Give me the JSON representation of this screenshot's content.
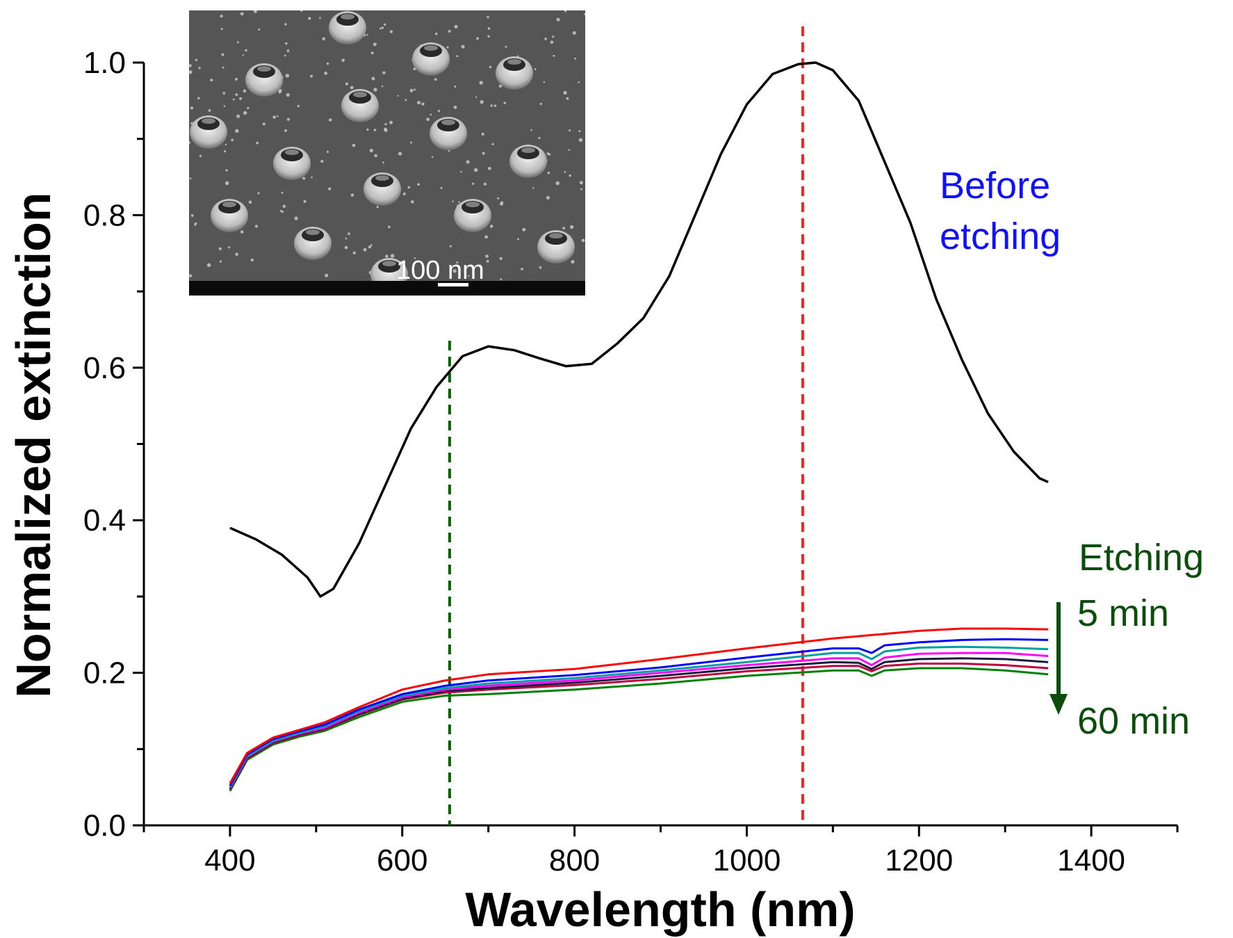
{
  "chart_data": {
    "type": "line",
    "title": "",
    "xlabel": "Wavelength (nm)",
    "ylabel": "Normalized extinction",
    "xlim": [
      300,
      1500
    ],
    "ylim": [
      0,
      1.0
    ],
    "xticks": [
      400,
      600,
      800,
      1000,
      1200,
      1400
    ],
    "xtick_labels": [
      "400",
      "600",
      "800",
      "1000",
      "1200",
      "1400"
    ],
    "yticks": [
      0,
      0.2,
      0.4,
      0.6,
      0.8,
      1.0
    ],
    "ytick_labels": [
      "0.0",
      "0.2",
      "0.4",
      "0.6",
      "0.8",
      "1.0"
    ],
    "grid": false,
    "series": [
      {
        "name": "Before etching",
        "color": "#000000",
        "x": [
          400,
          430,
          460,
          490,
          505,
          520,
          550,
          580,
          610,
          640,
          670,
          700,
          730,
          760,
          790,
          820,
          850,
          880,
          910,
          940,
          970,
          1000,
          1030,
          1060,
          1080,
          1100,
          1130,
          1160,
          1190,
          1220,
          1250,
          1280,
          1310,
          1340,
          1350
        ],
        "y": [
          0.39,
          0.375,
          0.355,
          0.325,
          0.3,
          0.31,
          0.37,
          0.445,
          0.52,
          0.575,
          0.615,
          0.628,
          0.623,
          0.612,
          0.602,
          0.605,
          0.632,
          0.665,
          0.72,
          0.8,
          0.88,
          0.945,
          0.985,
          0.998,
          1.0,
          0.99,
          0.95,
          0.87,
          0.79,
          0.69,
          0.61,
          0.54,
          0.49,
          0.455,
          0.45
        ]
      },
      {
        "name": "Etching 5 min",
        "color": "#ff0000",
        "x": [
          400,
          420,
          450,
          480,
          510,
          550,
          600,
          650,
          700,
          800,
          900,
          1000,
          1100,
          1150,
          1200,
          1250,
          1300,
          1350
        ],
        "y": [
          0.055,
          0.095,
          0.115,
          0.125,
          0.135,
          0.155,
          0.178,
          0.19,
          0.198,
          0.205,
          0.218,
          0.232,
          0.245,
          0.25,
          0.255,
          0.258,
          0.258,
          0.257
        ]
      },
      {
        "name": "Etching",
        "color": "#0000ff",
        "x": [
          400,
          420,
          450,
          480,
          510,
          550,
          600,
          650,
          700,
          800,
          900,
          1000,
          1100,
          1130,
          1145,
          1160,
          1200,
          1250,
          1300,
          1350
        ],
        "y": [
          0.052,
          0.093,
          0.113,
          0.123,
          0.132,
          0.152,
          0.172,
          0.183,
          0.19,
          0.197,
          0.207,
          0.22,
          0.232,
          0.232,
          0.226,
          0.236,
          0.24,
          0.243,
          0.244,
          0.243
        ]
      },
      {
        "name": "Etching",
        "color": "#00a0a0",
        "x": [
          400,
          420,
          450,
          480,
          510,
          550,
          600,
          650,
          700,
          800,
          900,
          1000,
          1100,
          1130,
          1145,
          1160,
          1200,
          1250,
          1300,
          1350
        ],
        "y": [
          0.05,
          0.091,
          0.111,
          0.121,
          0.13,
          0.15,
          0.17,
          0.18,
          0.186,
          0.193,
          0.203,
          0.214,
          0.226,
          0.226,
          0.218,
          0.228,
          0.233,
          0.234,
          0.233,
          0.231
        ]
      },
      {
        "name": "Etching",
        "color": "#ff00ff",
        "x": [
          400,
          420,
          450,
          480,
          510,
          550,
          600,
          650,
          700,
          800,
          900,
          1000,
          1100,
          1130,
          1145,
          1160,
          1200,
          1250,
          1300,
          1350
        ],
        "y": [
          0.049,
          0.09,
          0.11,
          0.12,
          0.128,
          0.148,
          0.168,
          0.178,
          0.183,
          0.19,
          0.2,
          0.21,
          0.219,
          0.219,
          0.21,
          0.22,
          0.225,
          0.226,
          0.226,
          0.222
        ]
      },
      {
        "name": "Etching",
        "color": "#1a1a40",
        "x": [
          400,
          420,
          450,
          480,
          510,
          550,
          600,
          650,
          700,
          800,
          900,
          1000,
          1100,
          1130,
          1145,
          1160,
          1200,
          1250,
          1300,
          1350
        ],
        "y": [
          0.048,
          0.089,
          0.109,
          0.119,
          0.127,
          0.146,
          0.166,
          0.176,
          0.18,
          0.187,
          0.196,
          0.206,
          0.214,
          0.213,
          0.205,
          0.214,
          0.218,
          0.219,
          0.218,
          0.214
        ]
      },
      {
        "name": "Etching",
        "color": "#c0003c",
        "x": [
          400,
          420,
          450,
          480,
          510,
          550,
          600,
          650,
          700,
          800,
          900,
          1000,
          1100,
          1130,
          1145,
          1160,
          1200,
          1250,
          1300,
          1350
        ],
        "y": [
          0.047,
          0.088,
          0.108,
          0.118,
          0.126,
          0.145,
          0.165,
          0.174,
          0.178,
          0.184,
          0.192,
          0.202,
          0.209,
          0.209,
          0.202,
          0.209,
          0.212,
          0.212,
          0.21,
          0.206
        ]
      },
      {
        "name": "Etching 60 min",
        "color": "#008000",
        "x": [
          400,
          420,
          450,
          480,
          510,
          550,
          600,
          650,
          700,
          800,
          900,
          1000,
          1100,
          1130,
          1145,
          1160,
          1200,
          1250,
          1300,
          1350
        ],
        "y": [
          0.045,
          0.086,
          0.106,
          0.116,
          0.124,
          0.142,
          0.162,
          0.17,
          0.172,
          0.178,
          0.186,
          0.196,
          0.203,
          0.203,
          0.196,
          0.203,
          0.206,
          0.206,
          0.203,
          0.198
        ]
      }
    ],
    "reference_lines": [
      {
        "x": 655,
        "color": "#006400",
        "style": "dashed"
      },
      {
        "x": 1065,
        "color": "#ff2020",
        "style": "dashed"
      }
    ],
    "annotations": {
      "before": {
        "line1": "Before",
        "line2": "etching",
        "color": "#1010ff"
      },
      "etching_title": "Etching",
      "etching_start": "5 min",
      "etching_end": "60 min",
      "etching_color": "#0b4d0b"
    },
    "inset": {
      "scale_bar_label": "100 nm"
    }
  }
}
